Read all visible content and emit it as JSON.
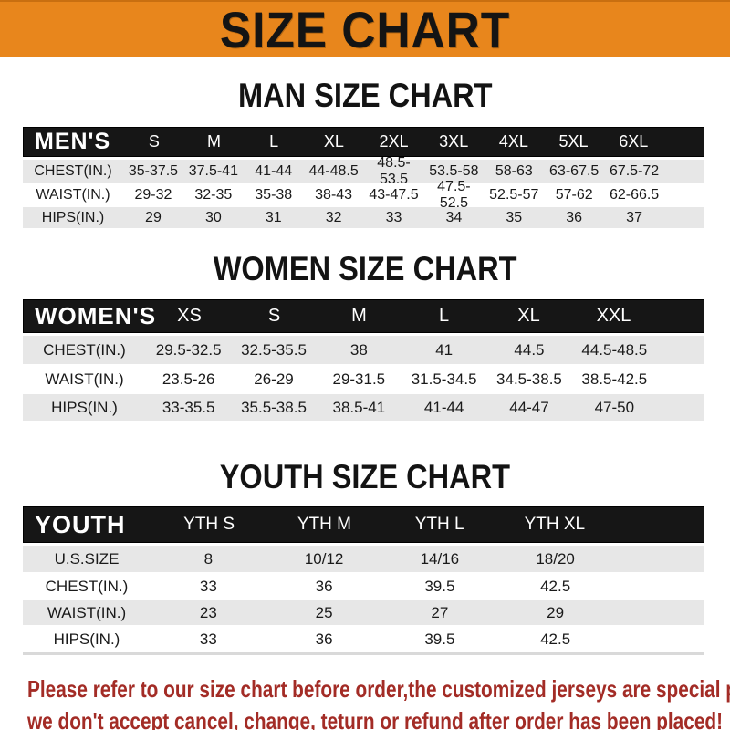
{
  "banner": {
    "title": "SIZE CHART",
    "bg_color": "#E8861C",
    "text_color": "#141414"
  },
  "sections": [
    {
      "heading": "MAN SIZE CHART",
      "table": {
        "corner_label": "MEN'S",
        "columns": [
          "S",
          "M",
          "L",
          "XL",
          "2XL",
          "3XL",
          "4XL",
          "5XL",
          "6XL"
        ],
        "rows": [
          {
            "label": "CHEST(IN.)",
            "values": [
              "35-37.5",
              "37.5-41",
              "41-44",
              "44-48.5",
              "48.5-53.5",
              "53.5-58",
              "58-63",
              "63-67.5",
              "67.5-72"
            ]
          },
          {
            "label": "WAIST(IN.)",
            "values": [
              "29-32",
              "32-35",
              "35-38",
              "38-43",
              "43-47.5",
              "47.5-52.5",
              "52.5-57",
              "57-62",
              "62-66.5"
            ]
          },
          {
            "label": "HIPS(IN.)",
            "values": [
              "29",
              "30",
              "31",
              "32",
              "33",
              "34",
              "35",
              "36",
              "37"
            ]
          }
        ]
      }
    },
    {
      "heading": "WOMEN SIZE CHART",
      "table": {
        "corner_label": "WOMEN'S",
        "columns": [
          "XS",
          "S",
          "M",
          "L",
          "XL",
          "XXL"
        ],
        "rows": [
          {
            "label": "CHEST(IN.)",
            "values": [
              "29.5-32.5",
              "32.5-35.5",
              "38",
              "41",
              "44.5",
              "44.5-48.5"
            ]
          },
          {
            "label": "WAIST(IN.)",
            "values": [
              "23.5-26",
              "26-29",
              "29-31.5",
              "31.5-34.5",
              "34.5-38.5",
              "38.5-42.5"
            ]
          },
          {
            "label": "HIPS(IN.)",
            "values": [
              "33-35.5",
              "35.5-38.5",
              "38.5-41",
              "41-44",
              "44-47",
              "47-50"
            ]
          }
        ]
      }
    },
    {
      "heading": "YOUTH SIZE CHART",
      "table": {
        "corner_label": "YOUTH",
        "columns": [
          "YTH S",
          "YTH M",
          "YTH L",
          "YTH XL"
        ],
        "rows": [
          {
            "label": "U.S.SIZE",
            "values": [
              "8",
              "10/12",
              "14/16",
              "18/20"
            ]
          },
          {
            "label": "CHEST(IN.)",
            "values": [
              "33",
              "36",
              "39.5",
              "42.5"
            ]
          },
          {
            "label": "WAIST(IN.)",
            "values": [
              "23",
              "25",
              "27",
              "29"
            ]
          },
          {
            "label": "HIPS(IN.)",
            "values": [
              "33",
              "36",
              "39.5",
              "42.5"
            ]
          }
        ]
      }
    }
  ],
  "disclaimer": {
    "line1": "Please refer to our size chart before order,the customized jerseys are special products,",
    "line2": "we don't accept cancel, change, teturn or refund after order has been placed!",
    "text_color": "#A32C26"
  },
  "colors": {
    "banner_orange": "#E8861C",
    "header_bar_black": "#161616",
    "row_gray": "#e7e7e7",
    "row_white": "#ffffff",
    "disclaimer_red": "#A32C26"
  }
}
